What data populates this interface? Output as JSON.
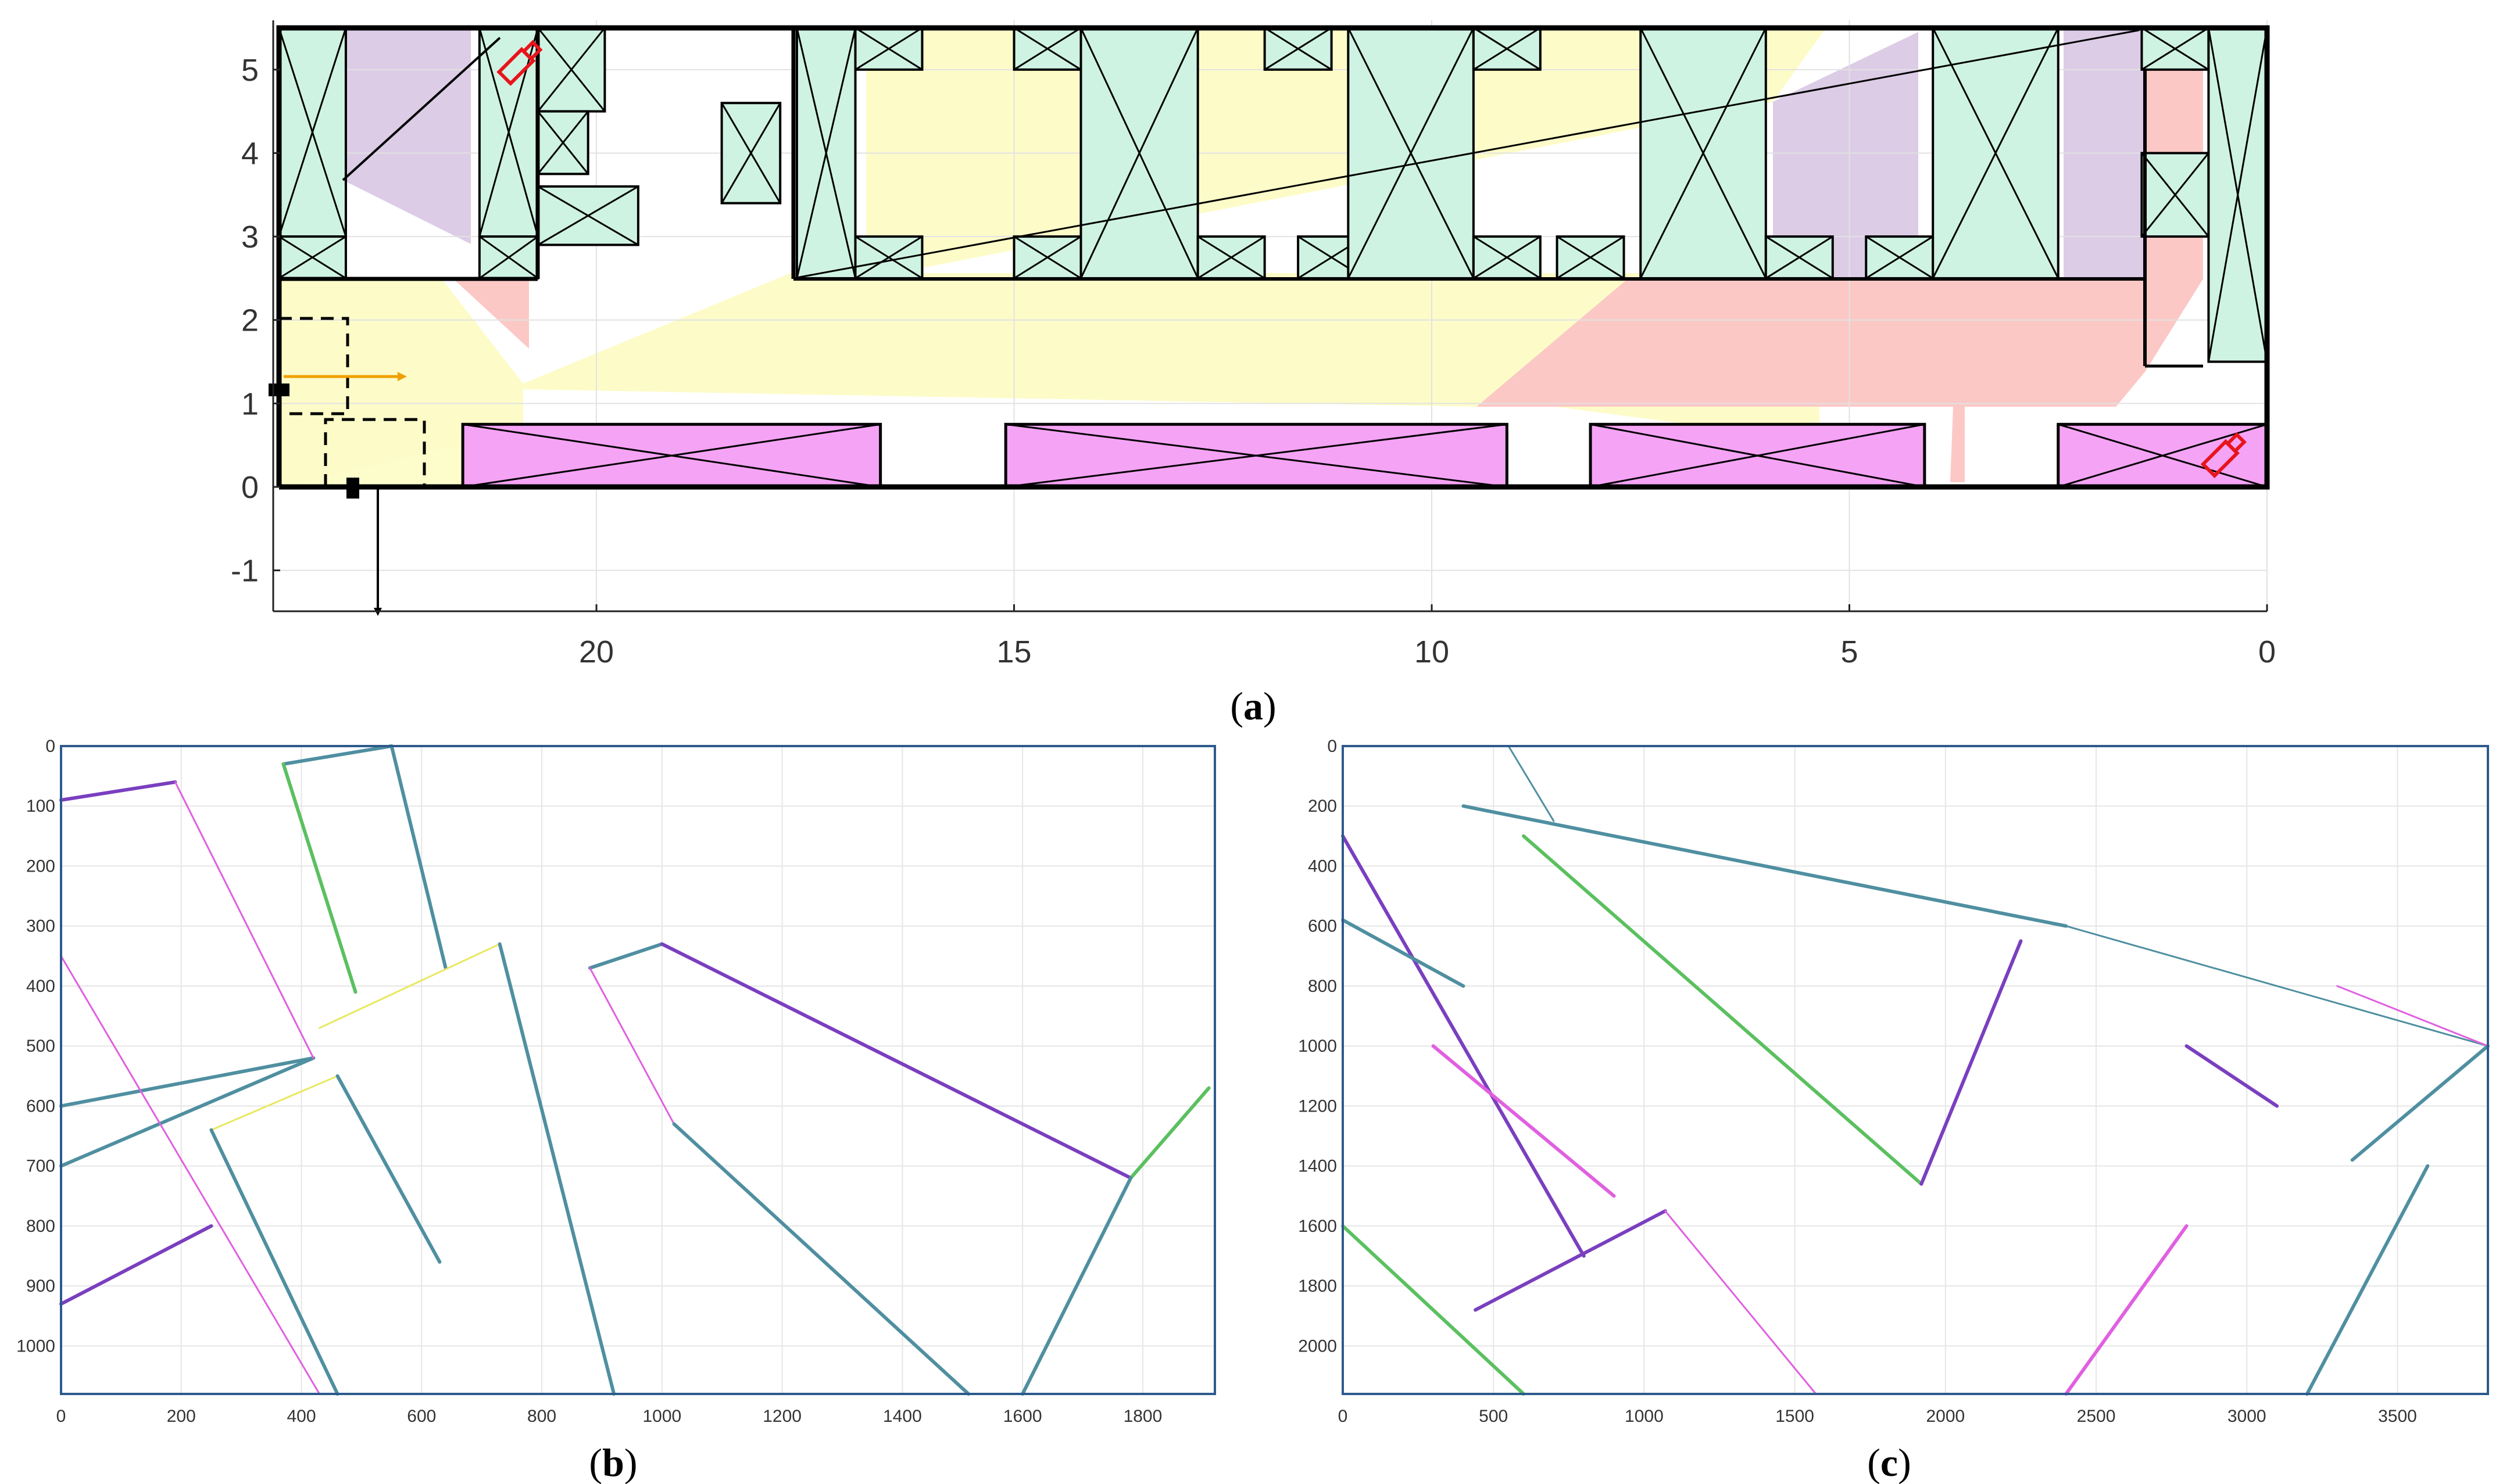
{
  "figure": {
    "caption_a": "a",
    "caption_b": "b",
    "caption_c": "c",
    "paren_open": "(",
    "paren_close": ")"
  },
  "colors": {
    "box_fill": "#cff3e2",
    "shelf_fill": "#f5a3f5",
    "yellow_region": "#fdfcc8",
    "purple_region": "#dccce6",
    "pink_region": "#fbc8c6",
    "wall": "#000000",
    "camera": "#e8141c",
    "arrow_orange": "#f0a000",
    "wire_teal": "#4f8fa0",
    "wire_purple": "#7a3fbf",
    "wire_magenta": "#e060e0",
    "wire_green": "#5bc060",
    "wire_yellow": "#e8e860",
    "axes_frame": "#2d5a8c"
  },
  "chart_data": [
    {
      "type": "scatter",
      "panel": "a",
      "x_ticks": [
        "20",
        "15",
        "10",
        "5",
        "0"
      ],
      "y_ticks": [
        "5",
        "4",
        "3",
        "2",
        "1",
        "0",
        "-1"
      ],
      "xlim": [
        23.8,
        0
      ],
      "ylim": [
        -1.5,
        5.5
      ],
      "x_reversed": true,
      "grid": true,
      "outer_wall": [
        [
          23.8,
          0
        ],
        [
          0,
          0
        ],
        [
          0,
          5.5
        ],
        [
          23.8,
          5.5
        ]
      ],
      "x_boxes": [
        [
          23.8,
          3.0,
          23.0,
          5.5
        ],
        [
          23.8,
          2.5,
          23.0,
          3.0
        ],
        [
          21.4,
          3.0,
          20.7,
          5.5
        ],
        [
          21.4,
          2.5,
          20.7,
          3.0
        ],
        [
          20.7,
          4.5,
          19.9,
          5.5
        ],
        [
          20.7,
          3.75,
          20.1,
          4.5
        ],
        [
          20.7,
          2.9,
          19.5,
          3.6
        ],
        [
          18.5,
          3.4,
          17.8,
          4.6
        ],
        [
          17.6,
          2.5,
          16.9,
          5.5
        ],
        [
          16.9,
          5.0,
          16.1,
          5.5
        ],
        [
          16.9,
          2.5,
          16.1,
          3.0
        ],
        [
          15.0,
          5.0,
          14.2,
          5.5
        ],
        [
          15.0,
          2.5,
          14.2,
          3.0
        ],
        [
          14.2,
          2.5,
          12.8,
          5.5
        ],
        [
          12.8,
          2.5,
          12.0,
          3.0
        ],
        [
          12.0,
          5.0,
          11.2,
          5.5
        ],
        [
          11.6,
          2.5,
          10.8,
          3.0
        ],
        [
          11.0,
          2.5,
          9.5,
          5.5
        ],
        [
          9.5,
          5.0,
          8.7,
          5.5
        ],
        [
          9.5,
          2.5,
          8.7,
          3.0
        ],
        [
          8.5,
          2.5,
          7.7,
          3.0
        ],
        [
          7.5,
          2.5,
          6.0,
          5.5
        ],
        [
          6.0,
          2.5,
          5.2,
          3.0
        ],
        [
          4.8,
          2.5,
          4.0,
          3.0
        ],
        [
          4.0,
          2.5,
          2.5,
          5.5
        ],
        [
          1.5,
          5.0,
          0.7,
          5.5
        ],
        [
          1.5,
          3.0,
          0.7,
          4.0
        ],
        [
          0.7,
          1.5,
          0,
          5.5
        ]
      ],
      "shelves": [
        [
          21.6,
          0,
          16.6,
          0.75
        ],
        [
          15.1,
          0,
          9.1,
          0.75
        ],
        [
          8.1,
          0,
          4.1,
          0.75
        ],
        [
          2.5,
          0,
          0,
          0.75
        ]
      ],
      "cameras": [
        {
          "x": 20.9,
          "y": 5.1
        },
        {
          "x": 0.5,
          "y": 0.4
        }
      ]
    },
    {
      "type": "line",
      "panel": "b",
      "x_ticks": [
        "0",
        "200",
        "400",
        "600",
        "800",
        "1000",
        "1200",
        "1400",
        "1600",
        "1800"
      ],
      "y_ticks": [
        "0",
        "100",
        "200",
        "300",
        "400",
        "500",
        "600",
        "700",
        "800",
        "900",
        "1000"
      ],
      "xlim": [
        0,
        1920
      ],
      "ylim": [
        1080,
        0
      ],
      "grid": true,
      "wireframe_segments": [
        [
          [
            0,
            700
          ],
          [
            420,
            520
          ]
        ],
        [
          [
            0,
            600
          ],
          [
            420,
            520
          ]
        ],
        [
          [
            0,
            90
          ],
          [
            190,
            60
          ]
        ],
        [
          [
            190,
            60
          ],
          [
            420,
            520
          ]
        ],
        [
          [
            370,
            30
          ],
          [
            550,
            0
          ]
        ],
        [
          [
            370,
            30
          ],
          [
            490,
            410
          ]
        ],
        [
          [
            550,
            0
          ],
          [
            640,
            370
          ]
        ],
        [
          [
            430,
            470
          ],
          [
            730,
            330
          ]
        ],
        [
          [
            730,
            330
          ],
          [
            920,
            1080
          ]
        ],
        [
          [
            880,
            370
          ],
          [
            1000,
            330
          ]
        ],
        [
          [
            1000,
            330
          ],
          [
            1780,
            720
          ]
        ],
        [
          [
            880,
            370
          ],
          [
            1020,
            630
          ]
        ],
        [
          [
            1020,
            630
          ],
          [
            1510,
            1080
          ]
        ],
        [
          [
            1780,
            720
          ],
          [
            1910,
            570
          ]
        ],
        [
          [
            1600,
            1080
          ],
          [
            1780,
            720
          ]
        ],
        [
          [
            250,
            640
          ],
          [
            460,
            550
          ]
        ],
        [
          [
            460,
            550
          ],
          [
            630,
            860
          ]
        ],
        [
          [
            250,
            640
          ],
          [
            460,
            1080
          ]
        ],
        [
          [
            0,
            930
          ],
          [
            250,
            800
          ]
        ],
        [
          [
            0,
            350
          ],
          [
            430,
            1080
          ]
        ]
      ]
    },
    {
      "type": "line",
      "panel": "c",
      "x_ticks": [
        "0",
        "500",
        "1000",
        "1500",
        "2000",
        "2500",
        "3000",
        "3500"
      ],
      "y_ticks": [
        "0",
        "200",
        "400",
        "600",
        "800",
        "1000",
        "1200",
        "1400",
        "1600",
        "1800",
        "2000"
      ],
      "xlim": [
        0,
        3800
      ],
      "ylim": [
        2160,
        0
      ],
      "grid": true,
      "wireframe_segments": [
        [
          [
            0,
            1600
          ],
          [
            600,
            2160
          ]
        ],
        [
          [
            0,
            300
          ],
          [
            800,
            1700
          ]
        ],
        [
          [
            440,
            1880
          ],
          [
            1070,
            1550
          ]
        ],
        [
          [
            1070,
            1550
          ],
          [
            1570,
            2160
          ]
        ],
        [
          [
            300,
            1000
          ],
          [
            900,
            1500
          ]
        ],
        [
          [
            0,
            580
          ],
          [
            400,
            800
          ]
        ],
        [
          [
            400,
            200
          ],
          [
            2400,
            600
          ]
        ],
        [
          [
            2400,
            600
          ],
          [
            3800,
            1000
          ]
        ],
        [
          [
            600,
            300
          ],
          [
            1920,
            1460
          ]
        ],
        [
          [
            1920,
            1460
          ],
          [
            2250,
            650
          ]
        ],
        [
          [
            2800,
            1000
          ],
          [
            3100,
            1200
          ]
        ],
        [
          [
            3300,
            800
          ],
          [
            3800,
            1000
          ]
        ],
        [
          [
            2400,
            2160
          ],
          [
            2800,
            1600
          ]
        ],
        [
          [
            3200,
            2160
          ],
          [
            3600,
            1400
          ]
        ],
        [
          [
            3350,
            1380
          ],
          [
            3800,
            1000
          ]
        ],
        [
          [
            550,
            0
          ],
          [
            700,
            250
          ]
        ]
      ]
    }
  ]
}
